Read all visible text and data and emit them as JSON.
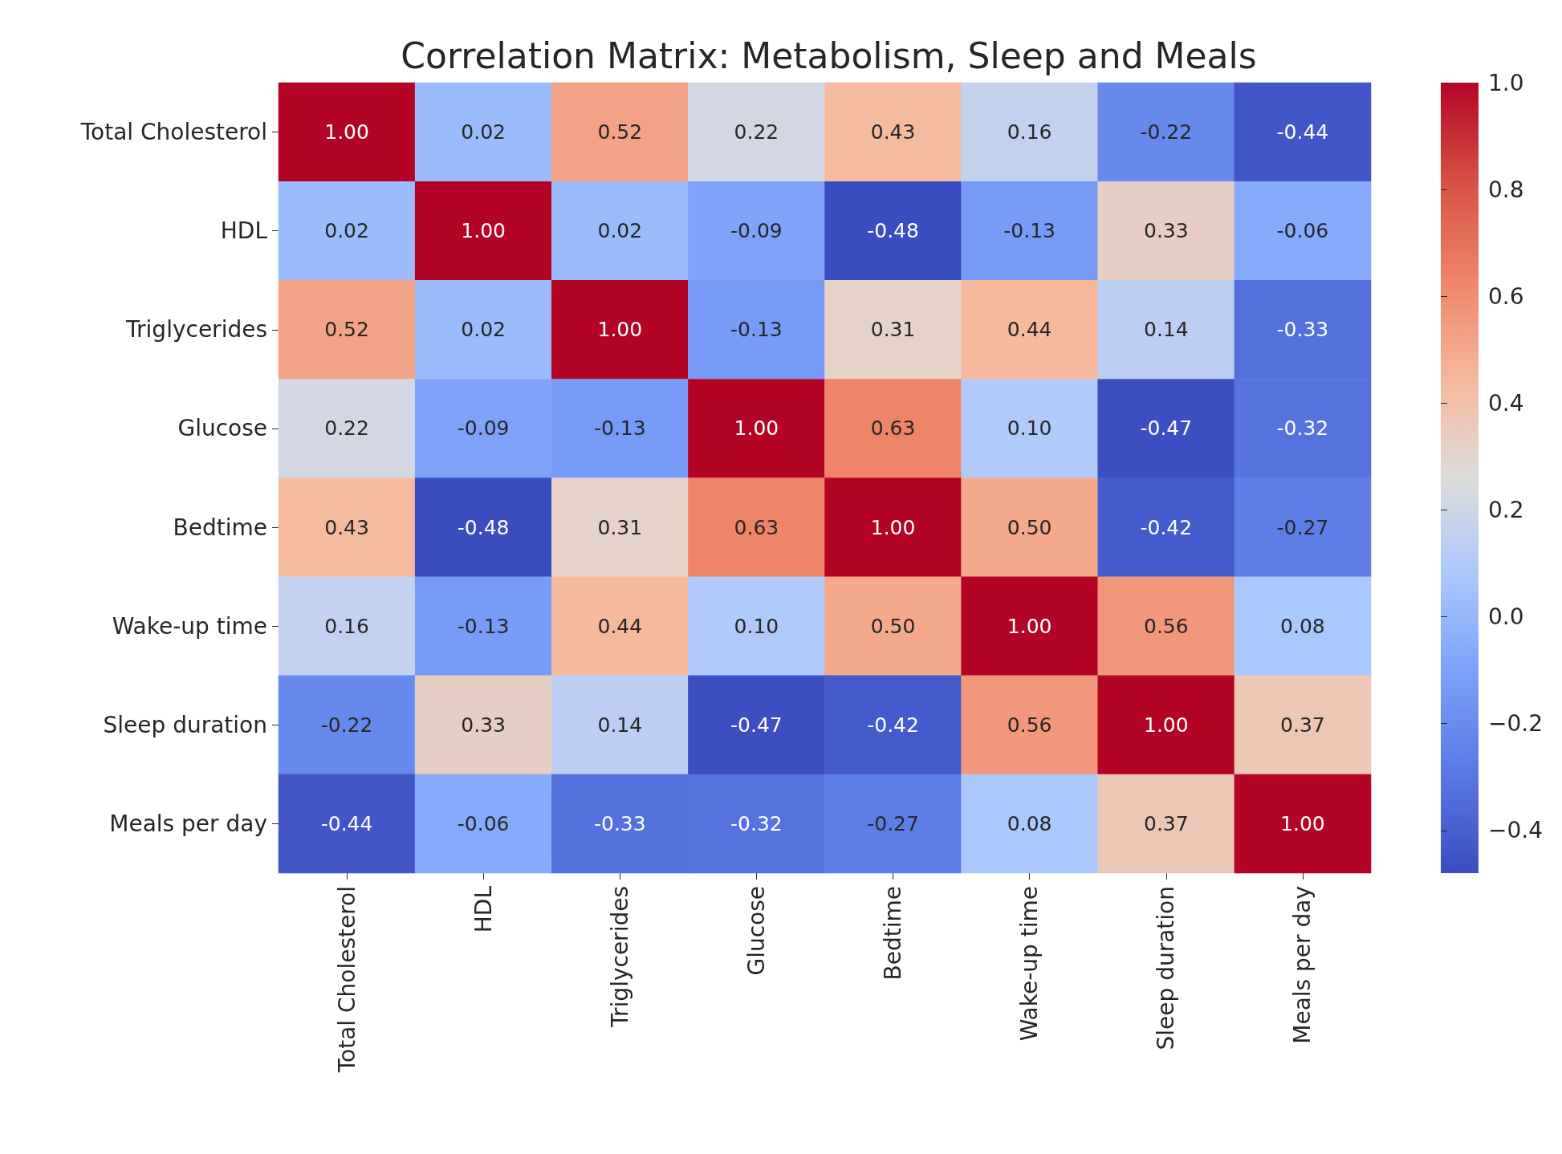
{
  "chart_data": {
    "type": "heatmap",
    "title": "Correlation Matrix: Metabolism, Sleep and Meals",
    "categories": [
      "Total Cholesterol",
      "HDL",
      "Triglycerides",
      "Glucose",
      "Bedtime",
      "Wake-up time",
      "Sleep duration",
      "Meals per day"
    ],
    "y_categories": [
      "Total Cholesterol",
      "HDL",
      "Triglycerides",
      "Glucose",
      "Bedtime",
      "Wake-up time",
      "Sleep duration",
      "Meals per day"
    ],
    "cells": [
      [
        1.0,
        0.02,
        0.52,
        0.22,
        0.43,
        0.16,
        -0.22,
        -0.44
      ],
      [
        0.02,
        1.0,
        0.02,
        -0.09,
        -0.48,
        -0.13,
        0.33,
        -0.06
      ],
      [
        0.52,
        0.02,
        1.0,
        -0.13,
        0.31,
        0.44,
        0.14,
        -0.33
      ],
      [
        0.22,
        -0.09,
        -0.13,
        1.0,
        0.63,
        0.1,
        -0.47,
        -0.32
      ],
      [
        0.43,
        -0.48,
        0.31,
        0.63,
        1.0,
        0.5,
        -0.42,
        -0.27
      ],
      [
        0.16,
        -0.13,
        0.44,
        0.1,
        0.5,
        1.0,
        0.56,
        0.08
      ],
      [
        -0.22,
        0.33,
        0.14,
        -0.47,
        -0.42,
        0.56,
        1.0,
        0.37
      ],
      [
        -0.44,
        -0.06,
        -0.33,
        -0.32,
        -0.27,
        0.08,
        0.37,
        1.0
      ]
    ],
    "cell_labels": [
      [
        "1.00",
        "0.02",
        "0.52",
        "0.22",
        "0.43",
        "0.16",
        "-0.22",
        "-0.44"
      ],
      [
        "0.02",
        "1.00",
        "0.02",
        "-0.09",
        "-0.48",
        "-0.13",
        "0.33",
        "-0.06"
      ],
      [
        "0.52",
        "0.02",
        "1.00",
        "-0.13",
        "0.31",
        "0.44",
        "0.14",
        "-0.33"
      ],
      [
        "0.22",
        "-0.09",
        "-0.13",
        "1.00",
        "0.63",
        "0.10",
        "-0.47",
        "-0.32"
      ],
      [
        "0.43",
        "-0.48",
        "0.31",
        "0.63",
        "1.00",
        "0.50",
        "-0.42",
        "-0.27"
      ],
      [
        "0.16",
        "-0.13",
        "0.44",
        "0.10",
        "0.50",
        "1.00",
        "0.56",
        "0.08"
      ],
      [
        "-0.22",
        "0.33",
        "0.14",
        "-0.47",
        "-0.42",
        "0.56",
        "1.00",
        "0.37"
      ],
      [
        "-0.44",
        "-0.06",
        "-0.33",
        "-0.32",
        "-0.27",
        "0.08",
        "0.37",
        "1.00"
      ]
    ],
    "clim": [
      -0.48,
      1.0
    ],
    "cticks": [
      {
        "value": -0.4,
        "label": "−0.4"
      },
      {
        "value": -0.2,
        "label": "−0.2"
      },
      {
        "value": 0,
        "label": "0.0"
      },
      {
        "value": 0.2,
        "label": "0.2"
      },
      {
        "value": 0.4,
        "label": "0.4"
      },
      {
        "value": 0.6,
        "label": "0.6"
      },
      {
        "value": 0.8,
        "label": "0.8"
      },
      {
        "value": 1,
        "label": "1.0"
      }
    ]
  }
}
